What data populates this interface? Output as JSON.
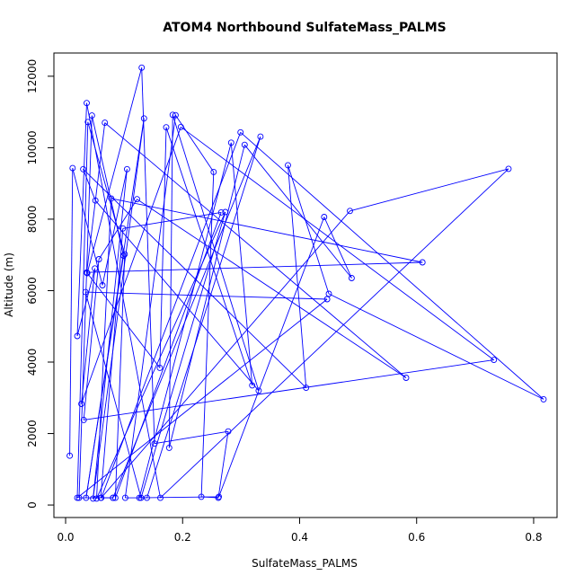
{
  "chart_data": {
    "type": "line",
    "title": "ATOM4 Northbound SulfateMass_PALMS",
    "xlabel": "SulfateMass_PALMS",
    "ylabel": "Altitude (m)",
    "xlim": [
      -0.02,
      0.84
    ],
    "ylim": [
      -350,
      12650
    ],
    "x_ticks": [
      0.0,
      0.2,
      0.4,
      0.6,
      0.8
    ],
    "x_tick_labels": [
      "0.0",
      "0.2",
      "0.4",
      "0.6",
      "0.8"
    ],
    "y_ticks": [
      0,
      2000,
      4000,
      6000,
      8000,
      10000,
      12000
    ],
    "y_tick_labels": [
      "0",
      "2000",
      "4000",
      "6000",
      "8000",
      "10000",
      "12000"
    ],
    "grid": false,
    "series_color": "#0000ff",
    "marker": "open-circle",
    "series": [
      {
        "points": [
          [
            0.007,
            1380
          ],
          [
            0.012,
            9430
          ],
          [
            0.063,
            6150
          ],
          [
            0.105,
            9400
          ],
          [
            0.047,
            180
          ],
          [
            0.134,
            10820
          ],
          [
            0.035,
            200
          ],
          [
            0.099,
            6980
          ],
          [
            0.045,
            10900
          ],
          [
            0.023,
            200
          ],
          [
            0.081,
            200
          ],
          [
            0.333,
            10310
          ],
          [
            0.139,
            200
          ],
          [
            0.102,
            200
          ],
          [
            0.188,
            10910
          ],
          [
            0.253,
            9320
          ],
          [
            0.232,
            230
          ],
          [
            0.261,
            200
          ],
          [
            0.278,
            2060
          ],
          [
            0.152,
            1720
          ],
          [
            0.13,
            12240
          ],
          [
            0.037,
            6490
          ],
          [
            0.161,
            3840
          ],
          [
            0.172,
            10570
          ],
          [
            0.319,
            3350
          ],
          [
            0.283,
            10140
          ],
          [
            0.126,
            200
          ],
          [
            0.262,
            230
          ],
          [
            0.442,
            8060
          ],
          [
            0.489,
            6350
          ],
          [
            0.306,
            10080
          ],
          [
            0.177,
            1600
          ],
          [
            0.183,
            10920
          ],
          [
            0.33,
            3200
          ],
          [
            0.051,
            8520
          ],
          [
            0.03,
            9400
          ],
          [
            0.411,
            3280
          ],
          [
            0.38,
            9510
          ],
          [
            0.45,
            5910
          ],
          [
            0.817,
            2960
          ],
          [
            0.299,
            10430
          ],
          [
            0.061,
            200
          ],
          [
            0.486,
            8230
          ],
          [
            0.757,
            9410
          ],
          [
            0.162,
            200
          ],
          [
            0.036,
            11250
          ],
          [
            0.02,
            4730
          ],
          [
            0.05,
            6620
          ],
          [
            0.027,
            2830
          ],
          [
            0.197,
            10580
          ],
          [
            0.732,
            4060
          ],
          [
            0.031,
            2380
          ],
          [
            0.057,
            6880
          ],
          [
            0.122,
            8560
          ],
          [
            0.582,
            3560
          ],
          [
            0.067,
            10700
          ],
          [
            0.036,
            6510
          ],
          [
            0.61,
            6790
          ],
          [
            0.078,
            8580
          ],
          [
            0.053,
            180
          ],
          [
            0.273,
            8200
          ],
          [
            0.129,
            200
          ],
          [
            0.034,
            5960
          ],
          [
            0.447,
            5760
          ],
          [
            0.02,
            200
          ],
          [
            0.038,
            10720
          ],
          [
            0.101,
            7020
          ],
          [
            0.085,
            200
          ],
          [
            0.266,
            8190
          ],
          [
            0.098,
            7740
          ],
          [
            0.06,
            200
          ],
          [
            0.081,
            200
          ]
        ]
      }
    ]
  }
}
